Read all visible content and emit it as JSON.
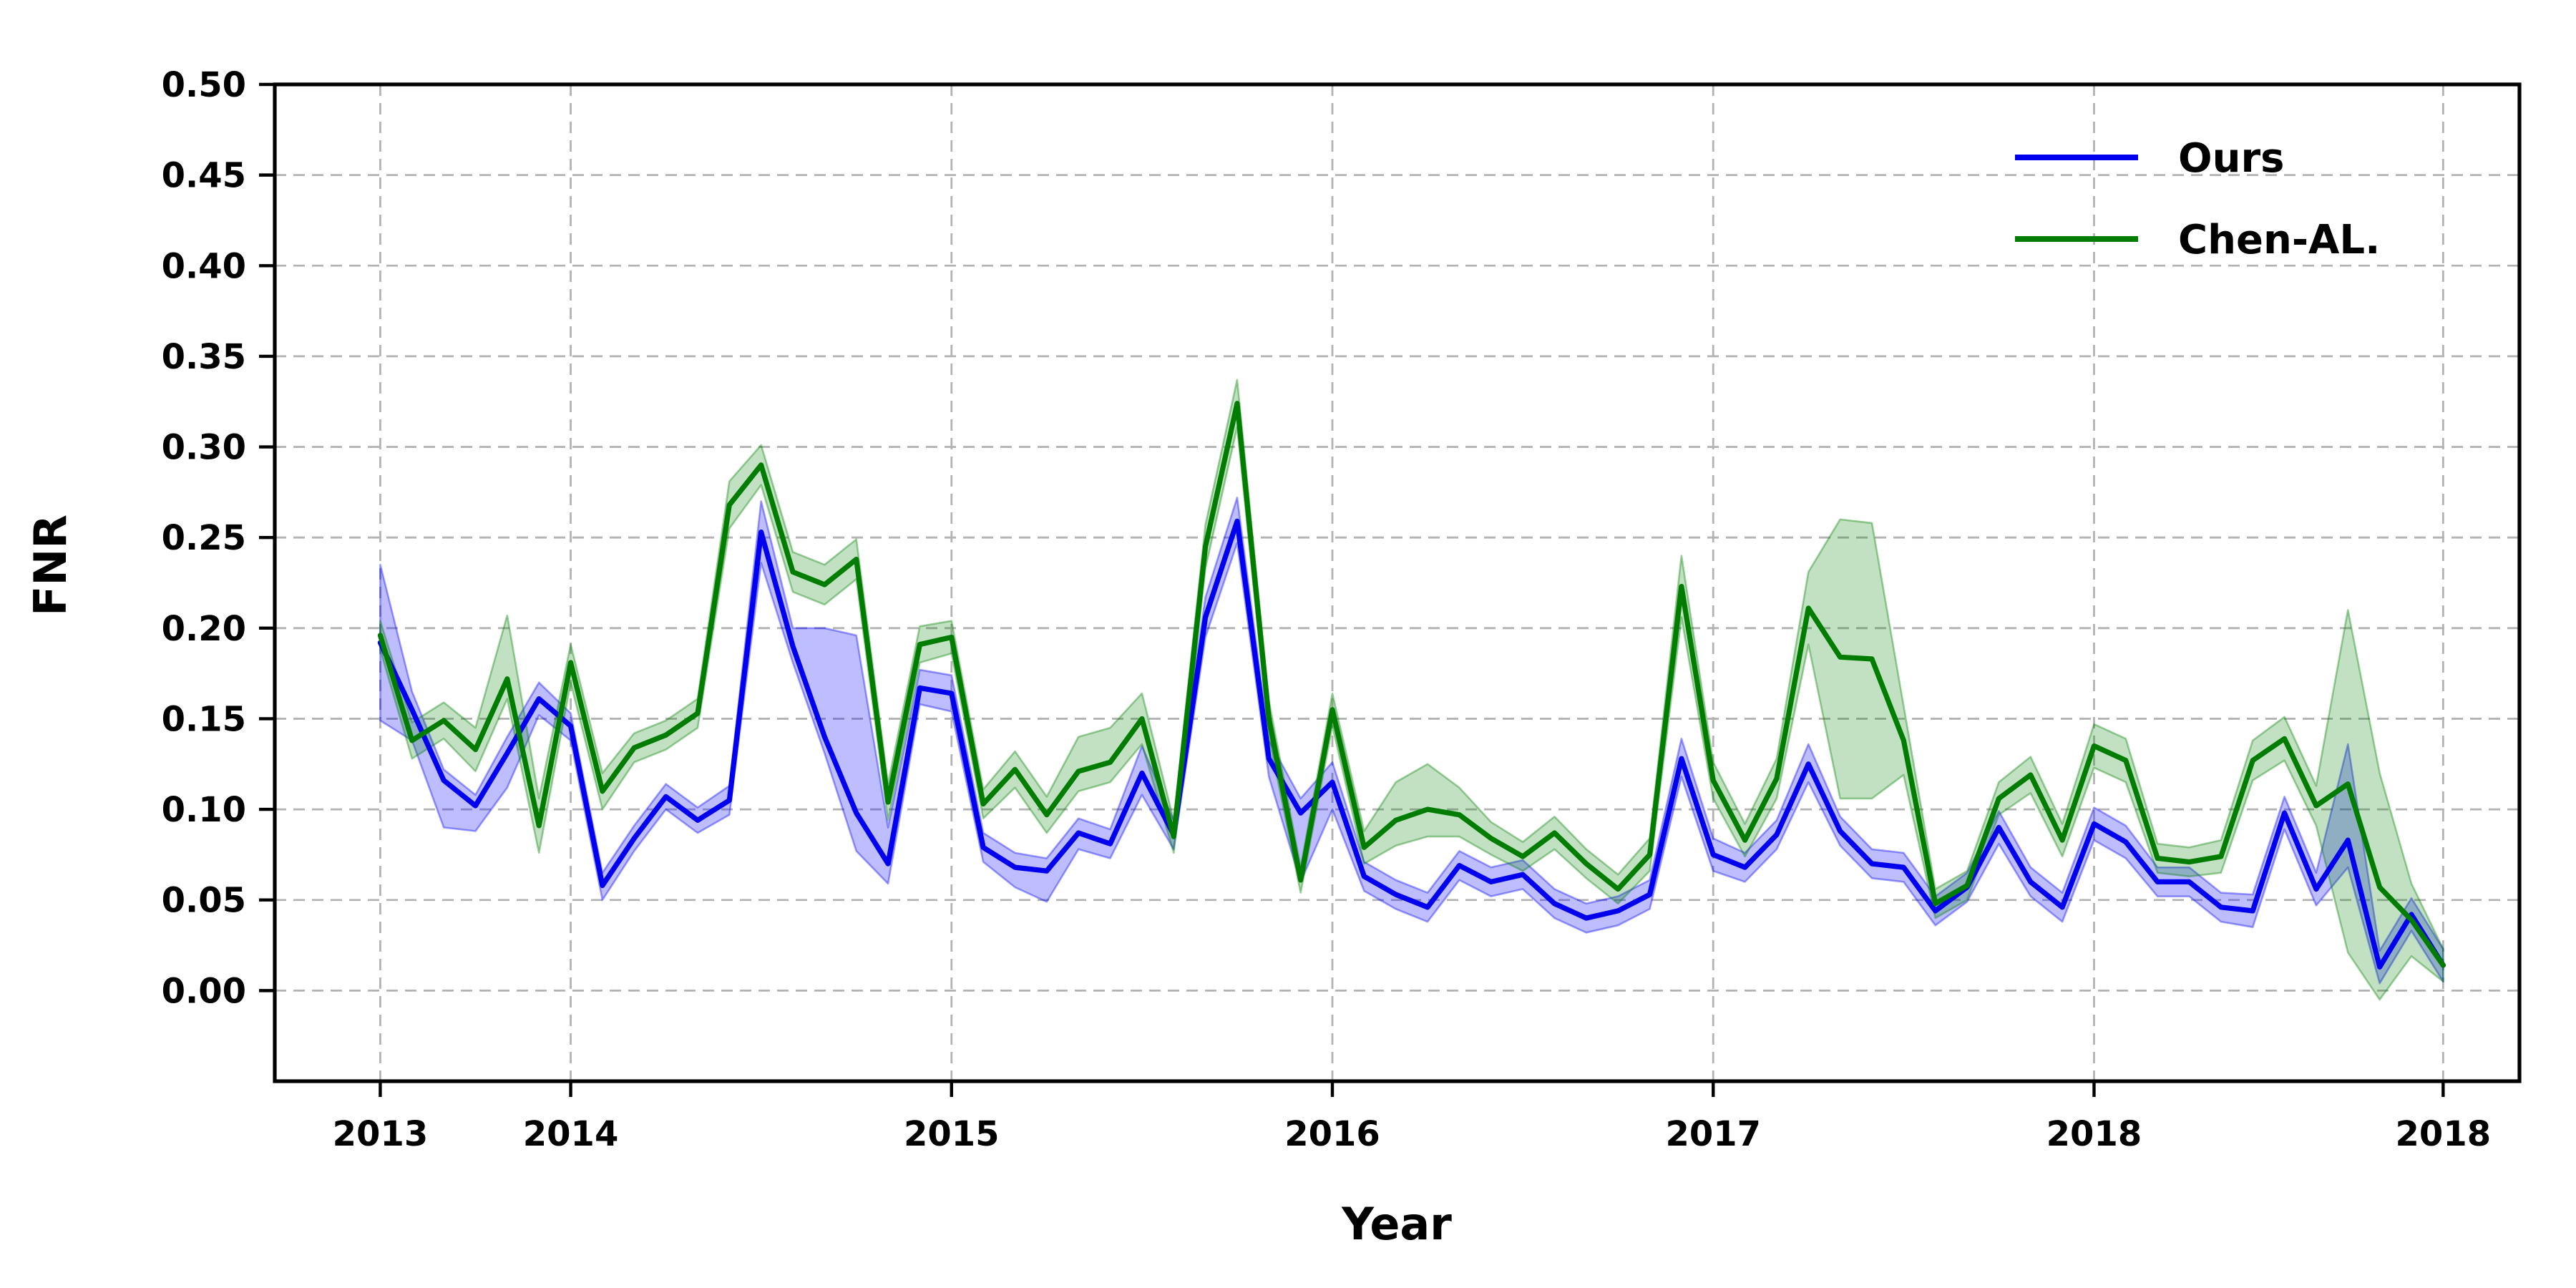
{
  "chart_data": {
    "type": "line",
    "title": "",
    "xlabel": "Year",
    "ylabel": "FNR",
    "ylim": [
      -0.05,
      0.5
    ],
    "xlim_points": [
      0,
      65
    ],
    "n_points": 66,
    "grid": {
      "show": true,
      "dashed": true,
      "color": "#b3b3b3"
    },
    "legend": {
      "position": "upper-right",
      "frame": false
    },
    "x_margin_left_frac": 0.047,
    "x_margin_right_frac": 0.034,
    "ytick_values": [
      0.0,
      0.05,
      0.1,
      0.15,
      0.2,
      0.25,
      0.3,
      0.35,
      0.4,
      0.45,
      0.5
    ],
    "ytick_labels": [
      "0.00",
      "0.05",
      "0.10",
      "0.15",
      "0.20",
      "0.25",
      "0.30",
      "0.35",
      "0.40",
      "0.45",
      "0.50"
    ],
    "xticks": [
      {
        "index": 0,
        "label": "2013"
      },
      {
        "index": 6,
        "label": "2014"
      },
      {
        "index": 18,
        "label": "2015"
      },
      {
        "index": 30,
        "label": "2016"
      },
      {
        "index": 42,
        "label": "2017"
      },
      {
        "index": 54,
        "label": "2018"
      },
      {
        "index": 65,
        "label": "2018"
      }
    ],
    "series": [
      {
        "name": "Ours",
        "color": "#0000ee",
        "band_color": "rgba(0,0,255,0.26)",
        "band_edge_color": "rgba(0,0,255,0.38)",
        "values": [
          0.192,
          0.155,
          0.116,
          0.102,
          0.131,
          0.161,
          0.146,
          0.058,
          0.084,
          0.107,
          0.094,
          0.105,
          0.253,
          0.19,
          0.14,
          0.098,
          0.07,
          0.167,
          0.164,
          0.079,
          0.068,
          0.066,
          0.087,
          0.081,
          0.12,
          0.086,
          0.206,
          0.259,
          0.128,
          0.098,
          0.115,
          0.063,
          0.053,
          0.046,
          0.069,
          0.06,
          0.064,
          0.048,
          0.04,
          0.044,
          0.053,
          0.128,
          0.075,
          0.068,
          0.086,
          0.125,
          0.088,
          0.07,
          0.068,
          0.044,
          0.057,
          0.09,
          0.06,
          0.046,
          0.092,
          0.082,
          0.06,
          0.06,
          0.046,
          0.044,
          0.098,
          0.056,
          0.083,
          0.013,
          0.042,
          0.014
        ],
        "band_low": [
          0.149,
          0.138,
          0.09,
          0.088,
          0.112,
          0.152,
          0.138,
          0.05,
          0.077,
          0.1,
          0.087,
          0.097,
          0.236,
          0.181,
          0.131,
          0.077,
          0.059,
          0.158,
          0.154,
          0.071,
          0.057,
          0.049,
          0.078,
          0.073,
          0.108,
          0.078,
          0.195,
          0.247,
          0.118,
          0.06,
          0.1,
          0.055,
          0.045,
          0.038,
          0.061,
          0.052,
          0.056,
          0.04,
          0.032,
          0.036,
          0.045,
          0.118,
          0.066,
          0.06,
          0.078,
          0.115,
          0.08,
          0.062,
          0.06,
          0.036,
          0.049,
          0.081,
          0.052,
          0.038,
          0.083,
          0.073,
          0.052,
          0.052,
          0.038,
          0.035,
          0.089,
          0.047,
          0.068,
          0.004,
          0.033,
          0.005
        ],
        "band_high": [
          0.235,
          0.165,
          0.122,
          0.108,
          0.14,
          0.17,
          0.153,
          0.065,
          0.091,
          0.114,
          0.101,
          0.113,
          0.27,
          0.2,
          0.2,
          0.196,
          0.09,
          0.177,
          0.174,
          0.087,
          0.076,
          0.073,
          0.095,
          0.089,
          0.135,
          0.094,
          0.217,
          0.272,
          0.138,
          0.106,
          0.126,
          0.071,
          0.061,
          0.054,
          0.077,
          0.068,
          0.072,
          0.056,
          0.048,
          0.052,
          0.061,
          0.139,
          0.084,
          0.076,
          0.094,
          0.136,
          0.096,
          0.078,
          0.076,
          0.052,
          0.065,
          0.099,
          0.068,
          0.054,
          0.101,
          0.091,
          0.068,
          0.068,
          0.054,
          0.053,
          0.107,
          0.065,
          0.136,
          0.022,
          0.051,
          0.023
        ]
      },
      {
        "name": "Chen-AL.",
        "color": "#007d00",
        "band_color": "rgba(0,128,0,0.24)",
        "band_edge_color": "rgba(0,128,0,0.38)",
        "values": [
          0.196,
          0.138,
          0.149,
          0.133,
          0.172,
          0.091,
          0.181,
          0.11,
          0.134,
          0.141,
          0.153,
          0.268,
          0.29,
          0.231,
          0.224,
          0.238,
          0.104,
          0.191,
          0.195,
          0.103,
          0.122,
          0.097,
          0.121,
          0.126,
          0.15,
          0.085,
          0.245,
          0.324,
          0.15,
          0.061,
          0.155,
          0.079,
          0.094,
          0.1,
          0.097,
          0.084,
          0.074,
          0.087,
          0.07,
          0.056,
          0.075,
          0.223,
          0.116,
          0.083,
          0.117,
          0.211,
          0.184,
          0.183,
          0.138,
          0.048,
          0.058,
          0.106,
          0.119,
          0.083,
          0.135,
          0.127,
          0.073,
          0.071,
          0.074,
          0.127,
          0.139,
          0.102,
          0.114,
          0.057,
          0.039,
          0.014
        ],
        "band_low": [
          0.188,
          0.128,
          0.139,
          0.121,
          0.161,
          0.076,
          0.17,
          0.1,
          0.126,
          0.133,
          0.145,
          0.255,
          0.279,
          0.22,
          0.213,
          0.227,
          0.094,
          0.181,
          0.186,
          0.095,
          0.112,
          0.087,
          0.11,
          0.115,
          0.136,
          0.076,
          0.233,
          0.311,
          0.14,
          0.054,
          0.146,
          0.07,
          0.08,
          0.085,
          0.085,
          0.075,
          0.066,
          0.078,
          0.062,
          0.048,
          0.066,
          0.206,
          0.106,
          0.074,
          0.106,
          0.191,
          0.106,
          0.106,
          0.119,
          0.04,
          0.05,
          0.097,
          0.109,
          0.074,
          0.123,
          0.115,
          0.065,
          0.063,
          0.065,
          0.116,
          0.127,
          0.091,
          0.021,
          -0.005,
          0.019,
          0.005
        ],
        "band_high": [
          0.204,
          0.148,
          0.159,
          0.145,
          0.207,
          0.106,
          0.191,
          0.12,
          0.142,
          0.149,
          0.161,
          0.281,
          0.301,
          0.242,
          0.235,
          0.249,
          0.114,
          0.201,
          0.204,
          0.111,
          0.132,
          0.107,
          0.14,
          0.145,
          0.164,
          0.094,
          0.257,
          0.337,
          0.16,
          0.068,
          0.164,
          0.088,
          0.115,
          0.125,
          0.112,
          0.093,
          0.082,
          0.096,
          0.078,
          0.064,
          0.084,
          0.24,
          0.126,
          0.092,
          0.128,
          0.231,
          0.26,
          0.258,
          0.157,
          0.056,
          0.066,
          0.115,
          0.129,
          0.092,
          0.147,
          0.139,
          0.081,
          0.079,
          0.083,
          0.138,
          0.151,
          0.113,
          0.21,
          0.12,
          0.059,
          0.023
        ]
      }
    ]
  }
}
